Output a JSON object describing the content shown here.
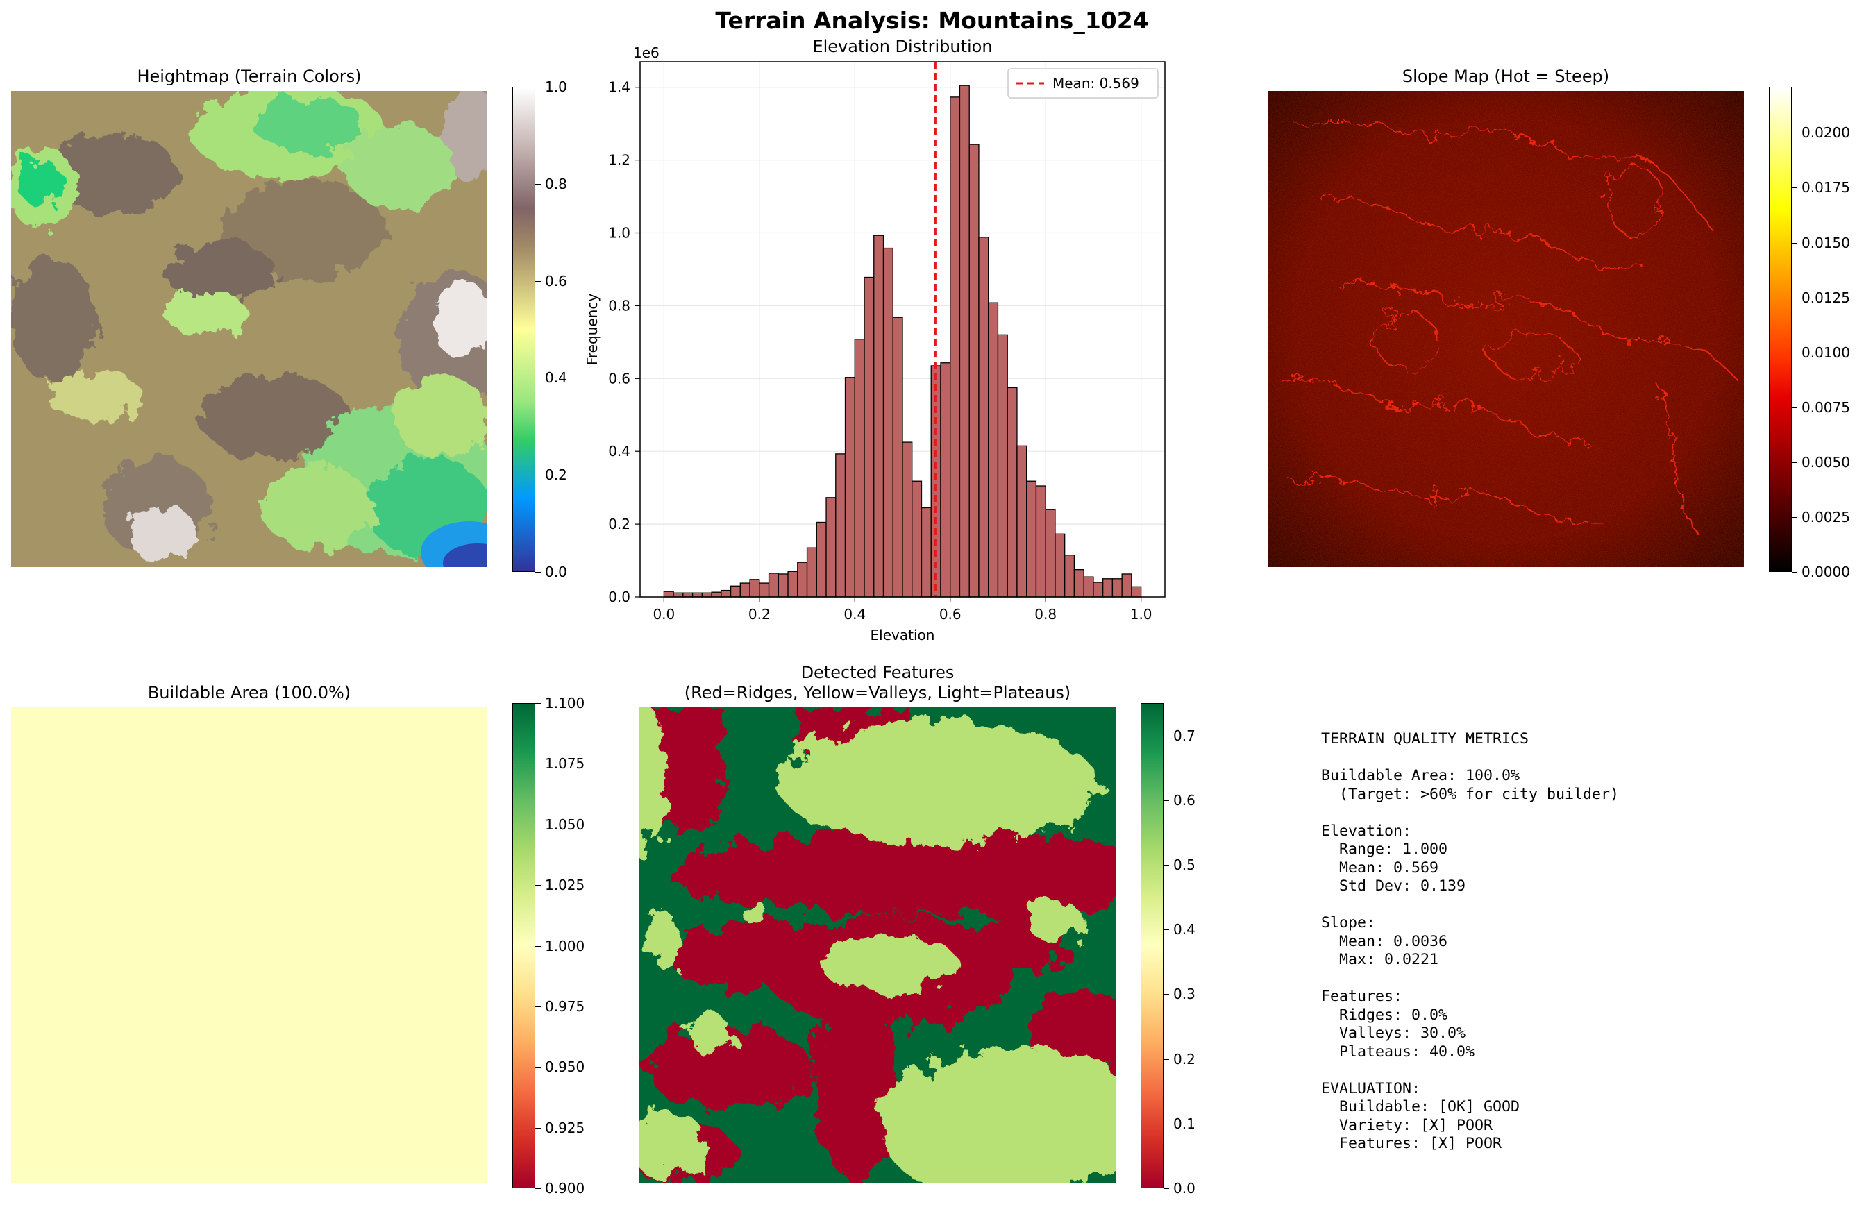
{
  "figure": {
    "title": "Terrain Analysis: Mountains_1024"
  },
  "panels": {
    "heightmap": {
      "title": "Heightmap (Terrain Colors)",
      "colorbar_ticks": [
        "0.0",
        "0.2",
        "0.4",
        "0.6",
        "0.8",
        "1.0"
      ],
      "colormap": "terrain"
    },
    "slope": {
      "title": "Slope Map (Hot = Steep)",
      "colorbar_ticks": [
        "0.0000",
        "0.0025",
        "0.0050",
        "0.0075",
        "0.0100",
        "0.0125",
        "0.0150",
        "0.0175",
        "0.0200"
      ],
      "colormap": "hot"
    },
    "buildable": {
      "title": "Buildable Area (100.0%)",
      "colorbar_ticks": [
        "0.900",
        "0.925",
        "0.950",
        "0.975",
        "1.000",
        "1.025",
        "1.050",
        "1.075",
        "1.100"
      ],
      "fill_color": "#feffbe",
      "colormap": "RdYlGn"
    },
    "features": {
      "title_line1": "Detected Features",
      "title_line2": "(Red=Ridges, Yellow=Valleys, Light=Plateaus)",
      "colorbar_ticks": [
        "0.0",
        "0.1",
        "0.2",
        "0.3",
        "0.4",
        "0.5",
        "0.6",
        "0.7"
      ],
      "colors": {
        "ridge": "#a50026",
        "plateau": "#b7e075",
        "valley": "#006837"
      },
      "colormap": "RdYlGn"
    }
  },
  "metrics_text": "TERRAIN QUALITY METRICS\n\nBuildable Area: 100.0%\n  (Target: >60% for city builder)\n\nElevation:\n  Range: 1.000\n  Mean: 0.569\n  Std Dev: 0.139\n\nSlope:\n  Mean: 0.0036\n  Max: 0.0221\n\nFeatures:\n  Ridges: 0.0%\n  Valleys: 30.0%\n  Plateaus: 40.0%\n\nEVALUATION:\n  Buildable: [OK] GOOD\n  Variety: [X] POOR\n  Features: [X] POOR",
  "chart_data": [
    {
      "type": "bar",
      "title": "Elevation Distribution",
      "xlabel": "Elevation",
      "ylabel": "Frequency",
      "y_scale_label": "1e6",
      "xlim": [
        -0.05,
        1.05
      ],
      "ylim": [
        0,
        1.47
      ],
      "x_ticks": [
        "0.0",
        "0.2",
        "0.4",
        "0.6",
        "0.8",
        "1.0"
      ],
      "y_ticks": [
        "0.0",
        "0.2",
        "0.4",
        "0.6",
        "0.8",
        "1.0",
        "1.2",
        "1.4"
      ],
      "bin_width": 0.02,
      "bin_starts": [
        0.0,
        0.02,
        0.04,
        0.06,
        0.08,
        0.1,
        0.12,
        0.14,
        0.16,
        0.18,
        0.2,
        0.22,
        0.24,
        0.26,
        0.28,
        0.3,
        0.32,
        0.34,
        0.36,
        0.38,
        0.4,
        0.42,
        0.44,
        0.46,
        0.48,
        0.5,
        0.52,
        0.54,
        0.56,
        0.58,
        0.6,
        0.62,
        0.64,
        0.66,
        0.68,
        0.7,
        0.72,
        0.74,
        0.76,
        0.78,
        0.8,
        0.82,
        0.84,
        0.86,
        0.88,
        0.9,
        0.92,
        0.94,
        0.96,
        0.98
      ],
      "values": [
        0.015,
        0.011,
        0.011,
        0.011,
        0.011,
        0.013,
        0.018,
        0.03,
        0.038,
        0.048,
        0.038,
        0.065,
        0.063,
        0.07,
        0.095,
        0.135,
        0.205,
        0.273,
        0.393,
        0.603,
        0.708,
        0.878,
        0.993,
        0.958,
        0.768,
        0.425,
        0.318,
        0.245,
        0.635,
        0.643,
        1.373,
        1.405,
        1.243,
        0.988,
        0.808,
        0.72,
        0.575,
        0.415,
        0.318,
        0.305,
        0.24,
        0.173,
        0.115,
        0.075,
        0.055,
        0.04,
        0.05,
        0.05,
        0.063,
        0.028
      ],
      "bar_color": "#bc6464",
      "mean_line": {
        "x": 0.569,
        "label": "Mean: 0.569",
        "color": "#e31a1c"
      },
      "legend_position": "upper right",
      "grid": true
    }
  ]
}
